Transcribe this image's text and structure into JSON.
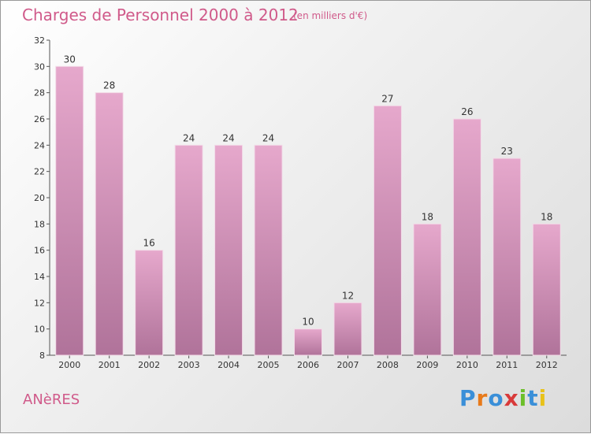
{
  "header": {
    "title": "Charges de Personnel 2000 à 2012",
    "subtitle": "(en milliers d'€)"
  },
  "footer": {
    "place": "ANèRES",
    "logo_text": "Proxiti"
  },
  "colors": {
    "bar_top": "#e6a8cc",
    "bar_bottom": "#b0739a",
    "title": "#d05a8a"
  },
  "chart_data": {
    "type": "bar",
    "title": "Charges de Personnel 2000 à 2012",
    "subtitle": "(en milliers d'€)",
    "categories": [
      "2000",
      "2001",
      "2002",
      "2003",
      "2004",
      "2005",
      "2006",
      "2007",
      "2008",
      "2009",
      "2010",
      "2011",
      "2012"
    ],
    "values": [
      30,
      28,
      16,
      24,
      24,
      24,
      10,
      12,
      27,
      18,
      26,
      23,
      18
    ],
    "ylim": [
      8,
      32
    ],
    "yticks": [
      8,
      10,
      12,
      14,
      16,
      18,
      20,
      22,
      24,
      26,
      28,
      30,
      32
    ],
    "grid": false,
    "legend": "none"
  }
}
